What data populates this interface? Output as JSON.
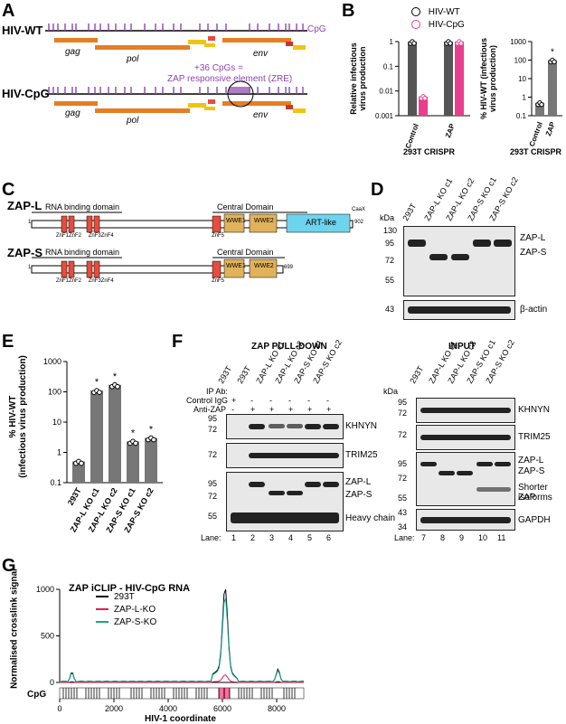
{
  "panels": {
    "a": "A",
    "b": "B",
    "c": "C",
    "d": "D",
    "e": "E",
    "f": "F",
    "g": "G"
  },
  "panelA": {
    "wt_label": "HIV-WT",
    "cpg_label": "HIV-CpG",
    "cpg_legend": "CpG",
    "genes": [
      "gag",
      "pol",
      "env"
    ],
    "annotation_line1": "+36 CpGs =",
    "annotation_line2": "ZAP responsive element (ZRE)"
  },
  "panelB": {
    "legend_wt": "HIV-WT",
    "legend_cpg": "HIV-CpG",
    "left_ylabel_1": "Relative infectious",
    "left_ylabel_2": "virus production",
    "right_ylabel_1": "% HIV-WT (infectious",
    "right_ylabel_2": "virus production)",
    "left_ticks": [
      "1",
      "0.1",
      "0.01",
      "0.001"
    ],
    "right_ticks": [
      "1000",
      "100",
      "10",
      "1",
      "0.1"
    ],
    "left_categories": [
      "Control",
      "ZAP"
    ],
    "right_categories": [
      "Control",
      "ZAP"
    ],
    "xtitle": "293T CRISPR",
    "star": "*",
    "colors": {
      "wt": "#555555",
      "cpg": "#e83e8c"
    }
  },
  "panelC": {
    "zapL": "ZAP-L",
    "zapS": "ZAP-S",
    "rbd": "RNA binding domain",
    "central": "Central Domain",
    "znf1": "ZnF1",
    "znf2": "ZnF2",
    "znf3": "ZnF3",
    "znf4": "ZnF4",
    "znf5": "ZnF5",
    "wwe1": "WWE1",
    "wwe2": "WWE2",
    "art": "ART-like",
    "caax": "CaaX",
    "startL": "1",
    "endL": "902",
    "startS": "1",
    "endS": "699"
  },
  "panelD": {
    "kda": "kDa",
    "lanes": [
      "293T",
      "ZAP-L KO c1",
      "ZAP-L KO c2",
      "ZAP-S KO c1",
      "ZAP-S KO c2"
    ],
    "mw": [
      "130",
      "95",
      "72",
      "55",
      "43"
    ],
    "labels": [
      "ZAP-L",
      "ZAP-S",
      "β-actin"
    ]
  },
  "panelE": {
    "ylabel_1": "% HIV-WT",
    "ylabel_2": "(infectious virus production)",
    "ticks": [
      "1000",
      "100",
      "10",
      "1",
      "0.1"
    ],
    "categories": [
      "293T",
      "ZAP-L KO c1",
      "ZAP-L KO c2",
      "ZAP-S KO c1",
      "ZAP-S KO c2"
    ],
    "star": "*"
  },
  "panelF": {
    "pulldown_title": "ZAP PULL-DOWN",
    "input_title": "INPUT",
    "ip_ab": "IP Ab:",
    "control_igg": "Control IgG",
    "anti_zap": "Anti-ZAP",
    "pd_lanes": [
      "293T",
      "293T",
      "ZAP-L KO c1",
      "ZAP-L KO c2",
      "ZAP-S KO c1",
      "ZAP-S KO c2"
    ],
    "igg_row": [
      "+",
      "-",
      "-",
      "-",
      "-",
      "-"
    ],
    "zap_row": [
      "-",
      "+",
      "+",
      "+",
      "+",
      "+"
    ],
    "input_lanes": [
      "293T",
      "ZAP-L KO c1",
      "ZAP-L KO c2",
      "ZAP-S KO c1",
      "ZAP-S KO c2"
    ],
    "kda": "kDa",
    "pd_mw": [
      "95",
      "72",
      "72",
      "95",
      "72",
      "55"
    ],
    "input_mw": [
      "95",
      "72",
      "72",
      "95",
      "72",
      "55",
      "43",
      "34"
    ],
    "pd_labels": [
      "KHNYN",
      "TRIM25",
      "ZAP-L",
      "ZAP-S",
      "Heavy chain"
    ],
    "input_labels": [
      "KHNYN",
      "TRIM25",
      "ZAP-L",
      "ZAP-S",
      "Shorter ZAP",
      "isoforms",
      "GAPDH"
    ],
    "lane_word": "Lane:",
    "pd_lane_nums": [
      "1",
      "2",
      "3",
      "4",
      "5",
      "6"
    ],
    "input_lane_nums": [
      "7",
      "8",
      "9",
      "10",
      "11"
    ]
  },
  "panelG": {
    "title": "ZAP iCLIP - HIV-CpG RNA",
    "ylabel": "Normalised crosslink signal",
    "xlabel": "HIV-1 coordinate",
    "cpg": "CpG",
    "yticks": [
      "1000",
      "500",
      "0"
    ],
    "xticks": [
      "0",
      "2000",
      "4000",
      "6000",
      "8000"
    ],
    "legend": [
      "293T",
      "ZAP-L-KO",
      "ZAP-S-KO"
    ],
    "colors": [
      "#000000",
      "#e6195a",
      "#17a589"
    ]
  },
  "chart_data": [
    {
      "type": "bar",
      "panel": "B-left",
      "categories": [
        "Control",
        "ZAP"
      ],
      "yscale": "log",
      "ylim": [
        0.001,
        1
      ],
      "series": [
        {
          "name": "HIV-WT",
          "values": [
            1,
            1
          ]
        },
        {
          "name": "HIV-CpG",
          "values": [
            0.006,
            1
          ]
        }
      ]
    },
    {
      "type": "bar",
      "panel": "B-right",
      "categories": [
        "Control",
        "ZAP"
      ],
      "yscale": "log",
      "ylim": [
        0.1,
        1000
      ],
      "values": [
        0.5,
        100
      ]
    },
    {
      "type": "bar",
      "panel": "E",
      "categories": [
        "293T",
        "ZAP-L KO c1",
        "ZAP-L KO c2",
        "ZAP-S KO c1",
        "ZAP-S KO c2"
      ],
      "yscale": "log",
      "ylim": [
        0.1,
        1000
      ],
      "values": [
        0.5,
        110,
        170,
        2.3,
        3
      ]
    },
    {
      "type": "line",
      "panel": "G",
      "xlim": [
        0,
        9000
      ],
      "ylim": [
        0,
        1000
      ],
      "series": [
        {
          "name": "293T",
          "peak_x": 6100,
          "peak_y": 950
        },
        {
          "name": "ZAP-L-KO",
          "peak_x": 6100,
          "peak_y": 70
        },
        {
          "name": "ZAP-S-KO",
          "peak_x": 6100,
          "peak_y": 850
        }
      ]
    }
  ]
}
